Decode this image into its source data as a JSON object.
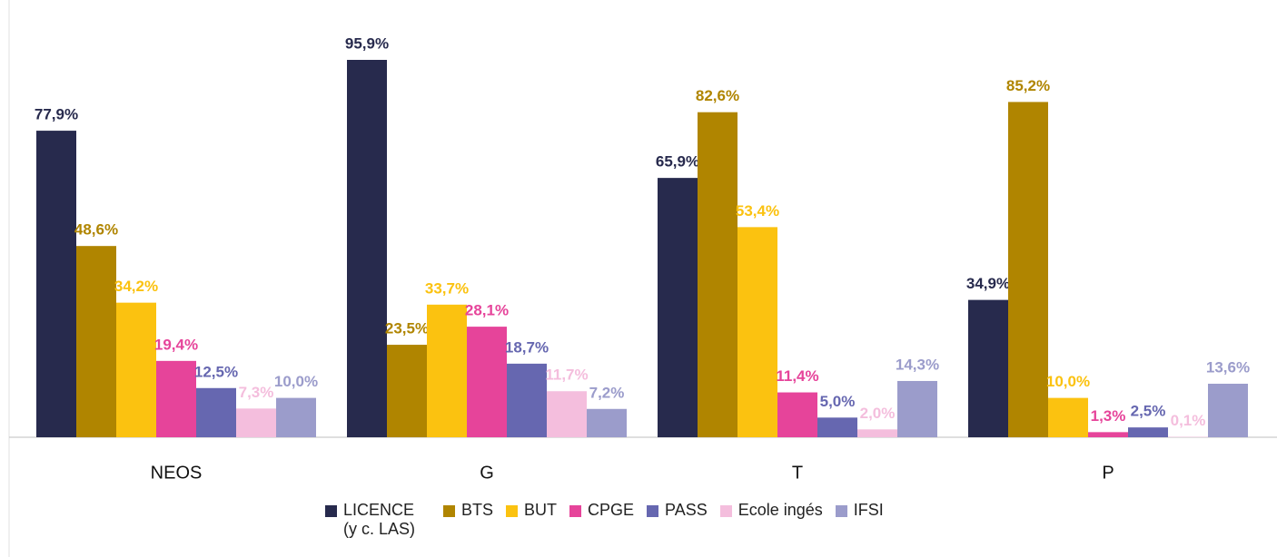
{
  "chart_data": {
    "type": "bar",
    "categories": [
      "NEOS",
      "G",
      "T",
      "P"
    ],
    "series": [
      {
        "name": "LICENCE (y c. LAS)",
        "color": "#272a4d",
        "values": [
          77.9,
          95.9,
          65.9,
          34.9
        ],
        "value_labels": [
          "77,9%",
          "95,9%",
          "65,9%",
          "34,9%"
        ]
      },
      {
        "name": "BTS",
        "color": "#b08500",
        "values": [
          48.6,
          23.5,
          82.6,
          85.2
        ],
        "value_labels": [
          "48,6%",
          "23,5%",
          "82,6%",
          "85,2%"
        ]
      },
      {
        "name": "BUT",
        "color": "#fbc210",
        "values": [
          34.2,
          33.7,
          53.4,
          10.0
        ],
        "value_labels": [
          "34,2%",
          "33,7%",
          "53,4%",
          "10,0%"
        ]
      },
      {
        "name": "CPGE",
        "color": "#e6449a",
        "values": [
          19.4,
          28.1,
          11.4,
          1.3
        ],
        "value_labels": [
          "19,4%",
          "28,1%",
          "11,4%",
          "1,3%"
        ]
      },
      {
        "name": "PASS",
        "color": "#6667b0",
        "values": [
          12.5,
          18.7,
          5.0,
          2.5
        ],
        "value_labels": [
          "12,5%",
          "18,7%",
          "5,0%",
          "2,5%"
        ]
      },
      {
        "name": "Ecole ingés",
        "color": "#f4bedd",
        "values": [
          7.3,
          11.7,
          2.0,
          0.1
        ],
        "value_labels": [
          "7,3%",
          "11,7%",
          "2,0%",
          "0,1%"
        ]
      },
      {
        "name": "IFSI",
        "color": "#9b9ccb",
        "values": [
          10.0,
          7.2,
          14.3,
          13.6
        ],
        "value_labels": [
          "10,0%",
          "7,2%",
          "14,3%",
          "13,6%"
        ]
      }
    ],
    "legend": "bottom"
  }
}
